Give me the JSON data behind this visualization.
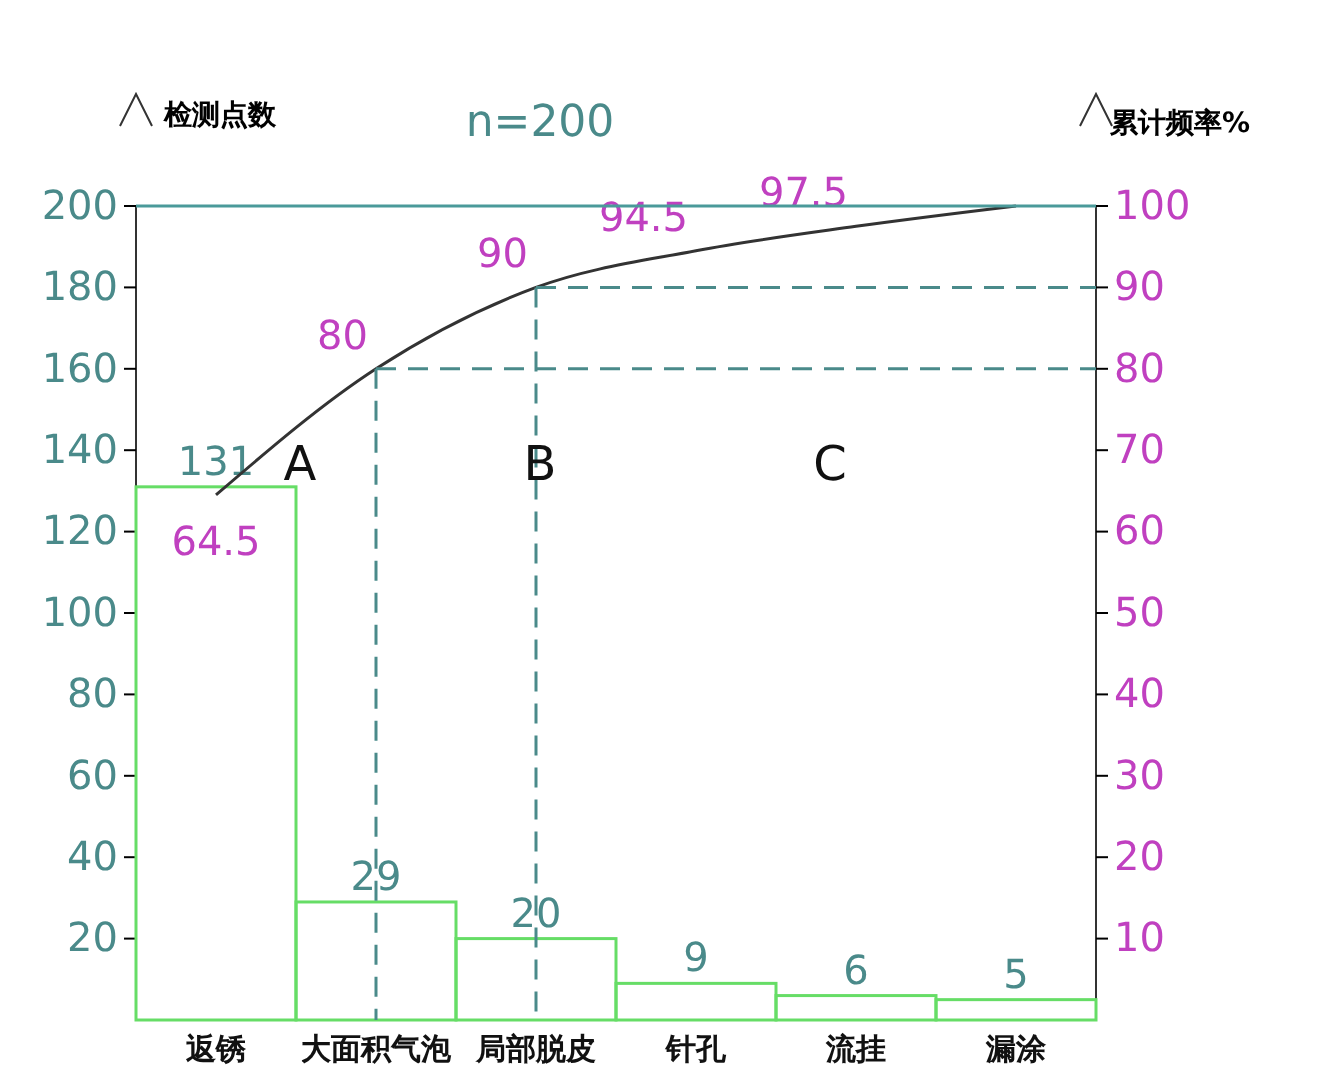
{
  "chart_data": {
    "type": "bar",
    "title": "n=200",
    "ylabel": "检测点数",
    "y2label": "累计频率%",
    "categories": [
      "返锈",
      "大面积气泡",
      "局部脱皮",
      "针孔",
      "流挂",
      "漏涂"
    ],
    "series": [
      {
        "color": "#66dd66",
        "values": [
          131,
          29,
          20,
          9,
          6,
          5
        ],
        "value_labels": [
          "131",
          "29",
          "20",
          "9",
          "6",
          "5"
        ]
      },
      {
        "type": "line",
        "axis": "y2",
        "color": "#333333",
        "values": [
          64.5,
          80,
          90,
          94.5,
          97.5,
          100
        ],
        "value_labels": [
          "64.5",
          "80",
          "90",
          "94.5",
          "97.5",
          null
        ]
      }
    ],
    "ylim": [
      0,
      200
    ],
    "yticks": [
      20,
      40,
      60,
      80,
      100,
      120,
      140,
      160,
      180,
      200
    ],
    "y2lim": [
      0,
      100
    ],
    "y2ticks": [
      10,
      20,
      30,
      40,
      50,
      60,
      70,
      80,
      90,
      100
    ],
    "ref_lines": [
      {
        "axis": "y",
        "value": 200,
        "color": "#4a9a9a",
        "line_style": "solid"
      },
      {
        "axis": "y2",
        "value": 80,
        "color": "#4a8a8a",
        "line_style": "dashed"
      },
      {
        "axis": "y2",
        "value": 90,
        "color": "#4a8a8a",
        "line_style": "dashed"
      }
    ],
    "annotations": [
      "A",
      "B",
      "C"
    ]
  }
}
